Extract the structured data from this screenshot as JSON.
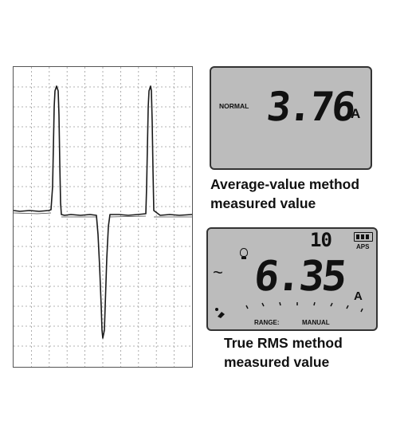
{
  "oscilloscope": {
    "description_free": true
  },
  "display_average": {
    "mode_label": "NORMAL",
    "reading": "3.76",
    "unit": "A"
  },
  "caption_average": {
    "line1": "Average-value method",
    "line2": "measured value"
  },
  "display_rms": {
    "range_digits": "10",
    "battery_label": "APS",
    "ac_symbol": "~",
    "reading": "6.35",
    "unit": "A",
    "range_label": "RANGE:",
    "range_mode": "MANUAL"
  },
  "caption_rms": {
    "line1": "True RMS method",
    "line2": "measured value"
  },
  "colors": {
    "lcd_background": "#bcbcbc",
    "segment": "#111111",
    "grid": "#9a9a9a"
  }
}
